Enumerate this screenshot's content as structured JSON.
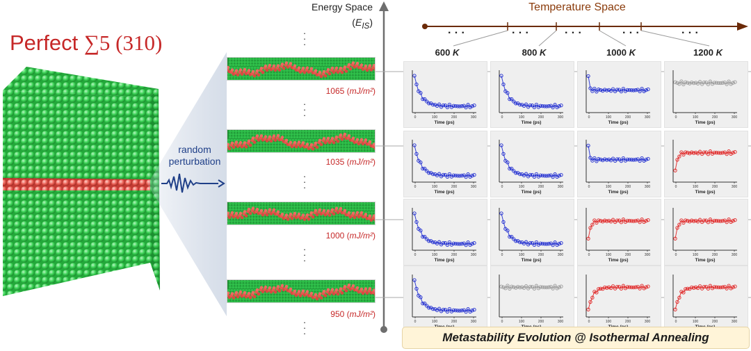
{
  "structure": {
    "title_prefix": "Perfect ",
    "title_sigma": "∑5 (310)"
  },
  "perturbation": {
    "line1": "random",
    "line2": "perturbation"
  },
  "energy_space": {
    "title": "Energy Space",
    "symbol": "E",
    "subscript": "IS",
    "unit": "mJ/m²",
    "levels": [
      1065,
      1035,
      1000,
      950
    ]
  },
  "temperature_space": {
    "title": "Temperature Space",
    "temperature_unit": "K",
    "temperatures": [
      600,
      800,
      1000,
      1200
    ]
  },
  "plot": {
    "xlabel": "Time (ps)",
    "xticks": [
      "0",
      "100",
      "200",
      "300"
    ]
  },
  "grid": [
    [
      "decay",
      "decay",
      "flat-high",
      "flat-grey"
    ],
    [
      "decay",
      "decay",
      "flat-high",
      "rise-fast"
    ],
    [
      "decay",
      "decay",
      "rise-fast",
      "rise-fast"
    ],
    [
      "decay",
      "flat-grey",
      "rise-slow",
      "rise-slow"
    ]
  ],
  "colors": {
    "decay": "#1e2bd0",
    "flat-high": "#1e2bd0",
    "flat-grey": "#9a9a9a",
    "rise-fast": "#e02424",
    "rise-slow": "#e02424",
    "title": "#c62828",
    "temperature_axis": "#6b2a08"
  },
  "footer": {
    "banner": "Metastability Evolution @ Isothermal Annealing"
  }
}
